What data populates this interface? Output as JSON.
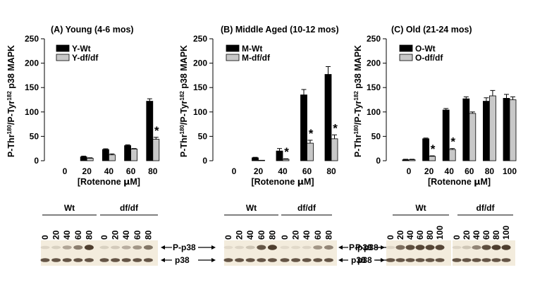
{
  "colors": {
    "wt": "#000000",
    "dfdf": "#c8c8c8",
    "axis": "#000000",
    "blot_bg": "#f3ecdd",
    "band": "#4a3a2a"
  },
  "chart_data": [
    {
      "type": "bar",
      "panel": "A",
      "title": "(A)   Young (4-6 mos)",
      "ylabel_parts": [
        "P-Thr",
        "180",
        "/P-Tyr",
        "182",
        " p38 MAPK"
      ],
      "xlabel_parts": [
        "[Rotenone ",
        "μ",
        "M]"
      ],
      "categories": [
        "0",
        "20",
        "40",
        "60",
        "80"
      ],
      "ylim": [
        0,
        250
      ],
      "yticks": [
        "0",
        "50",
        "100",
        "150",
        "200",
        "250"
      ],
      "series": [
        {
          "name": "Y-Wt",
          "key": "wt",
          "values": [
            0,
            8,
            23,
            31,
            122
          ],
          "errors": [
            0,
            1.5,
            1.5,
            1.5,
            5
          ]
        },
        {
          "name": "Y-df/df",
          "key": "dfdf",
          "values": [
            0,
            5,
            12,
            24,
            44
          ],
          "errors": [
            0,
            1,
            2,
            1,
            4
          ]
        }
      ],
      "stars": [
        "",
        "",
        "",
        "",
        "*"
      ]
    },
    {
      "type": "bar",
      "panel": "B",
      "title": "(B) Middle Aged (10-12 mos)",
      "ylabel_parts": [
        "P-Thr",
        "180",
        "/P-Tyr",
        "182",
        " p38 MAPK"
      ],
      "xlabel_parts": [
        "[Rotenone ",
        "μ",
        "M]"
      ],
      "categories": [
        "0",
        "20",
        "40",
        "60",
        "80"
      ],
      "ylim": [
        0,
        250
      ],
      "yticks": [
        "0",
        "50",
        "100",
        "150",
        "200",
        "250"
      ],
      "series": [
        {
          "name": "M-Wt",
          "key": "wt",
          "values": [
            0,
            6,
            20,
            135,
            177
          ],
          "errors": [
            0,
            1,
            5,
            11,
            16
          ]
        },
        {
          "name": "M-df/df",
          "key": "dfdf",
          "values": [
            0,
            1,
            3,
            36,
            45
          ],
          "errors": [
            0,
            0.5,
            1,
            6,
            8
          ]
        }
      ],
      "stars": [
        "",
        "",
        "*",
        "*",
        "*"
      ]
    },
    {
      "type": "bar",
      "panel": "C",
      "title": "(C)  Old (21-24 mos)",
      "ylabel_parts": [
        "P-Thr",
        "180",
        "/P-Tyr",
        "182",
        " p38 MAPK"
      ],
      "xlabel_parts": [
        "[Rotenone ",
        "μ",
        "M]"
      ],
      "categories": [
        "0",
        "20",
        "40",
        "60",
        "80",
        "100"
      ],
      "ylim": [
        0,
        250
      ],
      "yticks": [
        "0",
        "50",
        "100",
        "150",
        "200",
        "250"
      ],
      "series": [
        {
          "name": "O-Wt",
          "key": "wt",
          "values": [
            2,
            45,
            104,
            127,
            122,
            128
          ],
          "errors": [
            1,
            1.5,
            3,
            4,
            7,
            8
          ]
        },
        {
          "name": "O-df/df",
          "key": "dfdf",
          "values": [
            2,
            9,
            23,
            97,
            133,
            125
          ],
          "errors": [
            1,
            1,
            2,
            3,
            11,
            6
          ]
        }
      ],
      "stars": [
        "",
        "*",
        "*",
        "",
        "",
        ""
      ]
    }
  ],
  "blots": [
    {
      "groups": [
        "Wt",
        "df/df"
      ],
      "lanes": [
        [
          "0",
          "20",
          "40",
          "60",
          "80"
        ],
        [
          "0",
          "20",
          "40",
          "60",
          "80"
        ]
      ],
      "label_top": "P-p38",
      "label_bottom": "p38",
      "intensity_top": [
        [
          0.05,
          0.08,
          0.35,
          0.6,
          1.0
        ],
        [
          0.08,
          0.12,
          0.3,
          0.45,
          0.65
        ]
      ]
    },
    {
      "groups": [
        "Wt",
        "df/df"
      ],
      "lanes": [
        [
          "0",
          "20",
          "40",
          "60",
          "80"
        ],
        [
          "0",
          "20",
          "40",
          "60",
          "80"
        ]
      ],
      "label_top": "P-p38",
      "label_bottom": "p38",
      "intensity_top": [
        [
          0.02,
          0.05,
          0.15,
          0.85,
          1.0
        ],
        [
          0.02,
          0.03,
          0.05,
          0.45,
          0.55
        ]
      ]
    },
    {
      "groups": [
        "Wt",
        "df/df"
      ],
      "lanes": [
        [
          "0",
          "20",
          "40",
          "60",
          "80",
          "100"
        ],
        [
          "0",
          "20",
          "40",
          "60",
          "80",
          "100"
        ]
      ],
      "label_top": "P-p38",
      "label_bottom": "p38",
      "intensity_top": [
        [
          0.05,
          0.7,
          0.9,
          0.95,
          0.95,
          0.95
        ],
        [
          0.05,
          0.15,
          0.55,
          0.9,
          1.0,
          1.0
        ]
      ]
    }
  ]
}
